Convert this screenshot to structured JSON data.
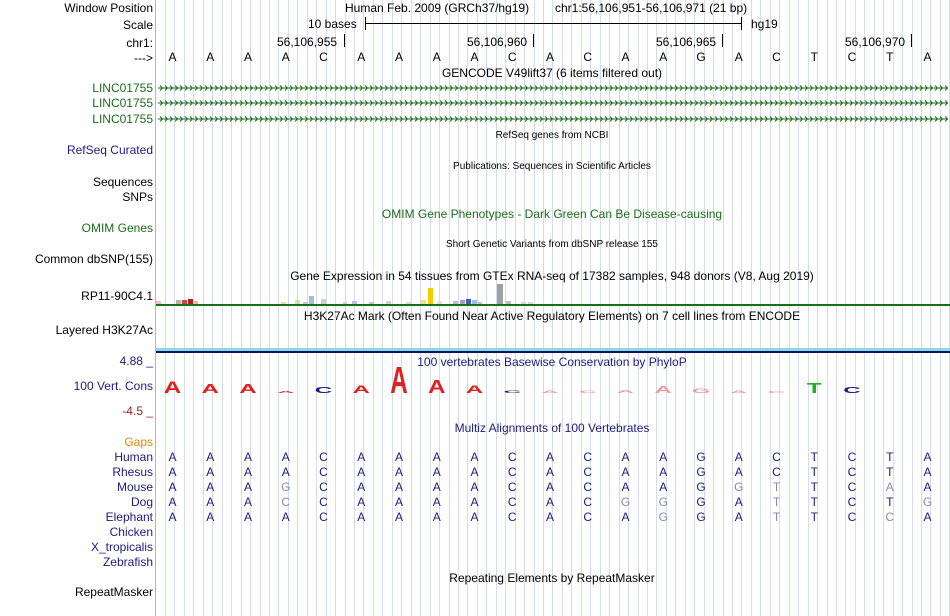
{
  "header": {
    "window_position_label": "Window Position",
    "scale_label": "Scale",
    "chrom_label": "chr1:",
    "strand_label": "--->",
    "assembly_title": "Human Feb. 2009 (GRCh37/hg19)",
    "window_position": "chr1:56,106,951-56,106,971 (21 bp)",
    "scale_text": "10 bases",
    "scale_assembly": "hg19",
    "coordinates": [
      "56,106,955",
      "56,106,960",
      "56,106,965",
      "56,106,970"
    ]
  },
  "reference_bases": [
    "A",
    "A",
    "A",
    "A",
    "C",
    "A",
    "A",
    "A",
    "A",
    "C",
    "A",
    "C",
    "A",
    "A",
    "G",
    "A",
    "C",
    "T",
    "C",
    "T",
    "A"
  ],
  "tracks": {
    "gencode": {
      "title": "GENCODE V49lift37 (6 items filtered out)",
      "genes": [
        "LINC01755",
        "LINC01755",
        "LINC01755"
      ],
      "color": "#1a6d1a"
    },
    "refseq": {
      "title": "RefSeq genes from NCBI",
      "label": "RefSeq Curated",
      "color": "#1c1c80"
    },
    "publications": {
      "title": "Publications: Sequences in Scientific Articles",
      "label_1": "Sequences",
      "label_2": "SNPs"
    },
    "omim": {
      "title": "OMIM Gene Phenotypes - Dark Green Can Be Disease-causing",
      "label": "OMIM Genes",
      "color": "#1a6d1a"
    },
    "dbsnp": {
      "title": "Short Genetic Variants from dbSNP release 155",
      "label": "Common dbSNP(155)"
    },
    "gtex": {
      "title": "Gene Expression in 54 tissues from GTEx RNA-seq of 17382 samples, 948 donors (V8, Aug 2019)",
      "label": "RP11-90C4.1",
      "label_color": "#000000"
    },
    "h3k27ac": {
      "title": "H3K27Ac Mark (Often Found Near Active Regulatory Elements) on 7 cell lines from ENCODE",
      "label": "Layered H3K27Ac"
    },
    "conservation": {
      "title": "100 vertebrates Basewise Conservation by PhyloP",
      "label": "100 Vert. Cons",
      "max_label": "4.88 _",
      "min_label": "-4.5 _",
      "color": "#1c1c80",
      "scores": [
        1.0,
        0.8,
        0.8,
        0.1,
        0.5,
        0.7,
        2.3,
        1.1,
        0.7,
        0.2,
        -0.2,
        -0.2,
        -0.3,
        -0.6,
        -0.4,
        -0.2,
        -0.1,
        0.9,
        0.5,
        0,
        0
      ]
    },
    "multiz": {
      "title": "Multiz Alignments of 100 Vertebrates",
      "gaps_label": "Gaps",
      "species": [
        {
          "name": "Human",
          "bases": [
            "A",
            "A",
            "A",
            "A",
            "C",
            "A",
            "A",
            "A",
            "A",
            "C",
            "A",
            "C",
            "A",
            "A",
            "G",
            "A",
            "C",
            "T",
            "C",
            "T",
            "A"
          ]
        },
        {
          "name": "Rhesus",
          "bases": [
            "A",
            "A",
            "A",
            "A",
            "C",
            "A",
            "A",
            "A",
            "A",
            "C",
            "A",
            "C",
            "A",
            "A",
            "G",
            "A",
            "C",
            "T",
            "C",
            "T",
            "A"
          ]
        },
        {
          "name": "Mouse",
          "bases": [
            "A",
            "A",
            "A",
            "G",
            "C",
            "A",
            "A",
            "A",
            "A",
            "C",
            "A",
            "C",
            "A",
            "A",
            "G",
            "G",
            "T",
            "T",
            "C",
            "A",
            "A"
          ]
        },
        {
          "name": "Dog",
          "bases": [
            "A",
            "A",
            "A",
            "C",
            "C",
            "A",
            "A",
            "A",
            "A",
            "C",
            "A",
            "C",
            "G",
            "G",
            "G",
            "A",
            "T",
            "T",
            "C",
            "T",
            "G"
          ]
        },
        {
          "name": "Elephant",
          "bases": [
            "A",
            "A",
            "A",
            "A",
            "C",
            "A",
            "A",
            "A",
            "A",
            "C",
            "A",
            "C",
            "A",
            "G",
            "G",
            "A",
            "T",
            "T",
            "C",
            "C",
            "A"
          ]
        },
        {
          "name": "Chicken",
          "bases": []
        },
        {
          "name": "X_tropicalis",
          "bases": []
        },
        {
          "name": "Zebrafish",
          "bases": []
        }
      ]
    },
    "repeatmasker": {
      "title": "Repeating Elements by RepeatMasker",
      "label": "RepeatMasker"
    }
  },
  "colors": {
    "navy": "#1c1c80",
    "green": "#1a6d1a",
    "orange": "#e08a00",
    "mismatch": "#8a8ab0"
  }
}
